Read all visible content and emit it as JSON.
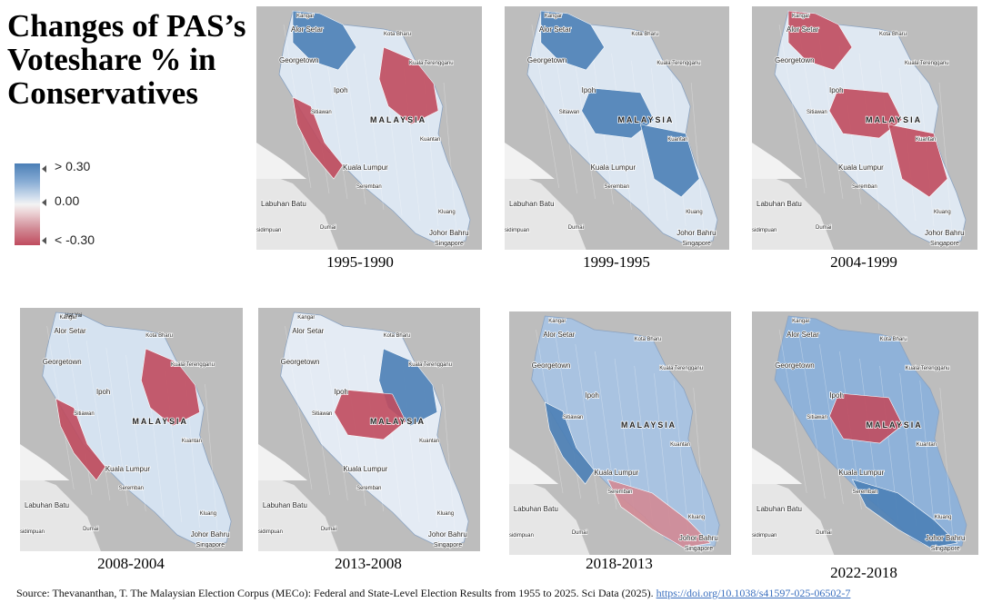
{
  "title": "Changes of PAS’s Voteshare % in Conservatives",
  "legend": {
    "high_label": "> 0.30",
    "mid_label": "0.00",
    "low_label": "< -0.30",
    "colors": {
      "positive": "#4b7fb6",
      "neutral": "#f3f3f3",
      "negative": "#c04b5e"
    }
  },
  "place_labels": {
    "kangar": "Kangar",
    "alor_setar": "Alor Setar",
    "kota_bharu": "Kota Bharu",
    "kuala_terengganu": "Kuala Terengganu",
    "georgetown": "Georgetown",
    "ipoh": "Ipoh",
    "sitiawan": "Sitiawan",
    "malaysia": "MALAYSIA",
    "kuantan": "Kuantan",
    "kuala_lumpur": "Kuala Lumpur",
    "seremban": "Seremban",
    "labuhan_batu": "Labuhan Batu",
    "dumai": "Dumai",
    "kluang": "Kluang",
    "johor_bahru": "Johor Bahru",
    "singapore": "Singapore",
    "hat_yai": "Hat Yai",
    "sidimpuan": "sidimpuan"
  },
  "maps": [
    {
      "period": "1995-1990",
      "base": "#dde7f2",
      "highlights": [
        {
          "region": "north",
          "color": "#4b7fb6"
        },
        {
          "region": "east",
          "color": "#c04b5e"
        },
        {
          "region": "west_coast",
          "color": "#c04b5e"
        }
      ]
    },
    {
      "period": "1999-1995",
      "base": "#dce6f1",
      "highlights": [
        {
          "region": "north",
          "color": "#4b7fb6"
        },
        {
          "region": "center",
          "color": "#4b7fb6"
        },
        {
          "region": "southeast",
          "color": "#4b7fb6"
        }
      ]
    },
    {
      "period": "2004-1999",
      "base": "#dfe8f2",
      "highlights": [
        {
          "region": "north",
          "color": "#c04b5e"
        },
        {
          "region": "center",
          "color": "#c04b5e"
        },
        {
          "region": "southeast",
          "color": "#c04b5e"
        }
      ]
    },
    {
      "period": "2008-2004",
      "base": "#d5e2f0",
      "highlights": [
        {
          "region": "west_coast",
          "color": "#c04b5e"
        },
        {
          "region": "east",
          "color": "#c04b5e"
        }
      ]
    },
    {
      "period": "2013-2008",
      "base": "#e4ebf4",
      "highlights": [
        {
          "region": "east",
          "color": "#4b7fb6"
        },
        {
          "region": "center",
          "color": "#c04b5e"
        }
      ]
    },
    {
      "period": "2018-2013",
      "base": "#a9c3e1",
      "highlights": [
        {
          "region": "west_coast",
          "color": "#4b7fb6"
        },
        {
          "region": "south",
          "color": "#d18a95"
        }
      ]
    },
    {
      "period": "2022-2018",
      "base": "#8fb2d9",
      "highlights": [
        {
          "region": "center",
          "color": "#c04b5e"
        },
        {
          "region": "south",
          "color": "#4b7fb6"
        }
      ]
    }
  ],
  "source": {
    "text": "Source: Thevananthan, T. The Malaysian Election Corpus (MECo): Federal and State-Level Election Results from 1955 to 2025. Sci Data (2025).",
    "link": "https://doi.org/10.1038/s41597-025-06502-7"
  }
}
